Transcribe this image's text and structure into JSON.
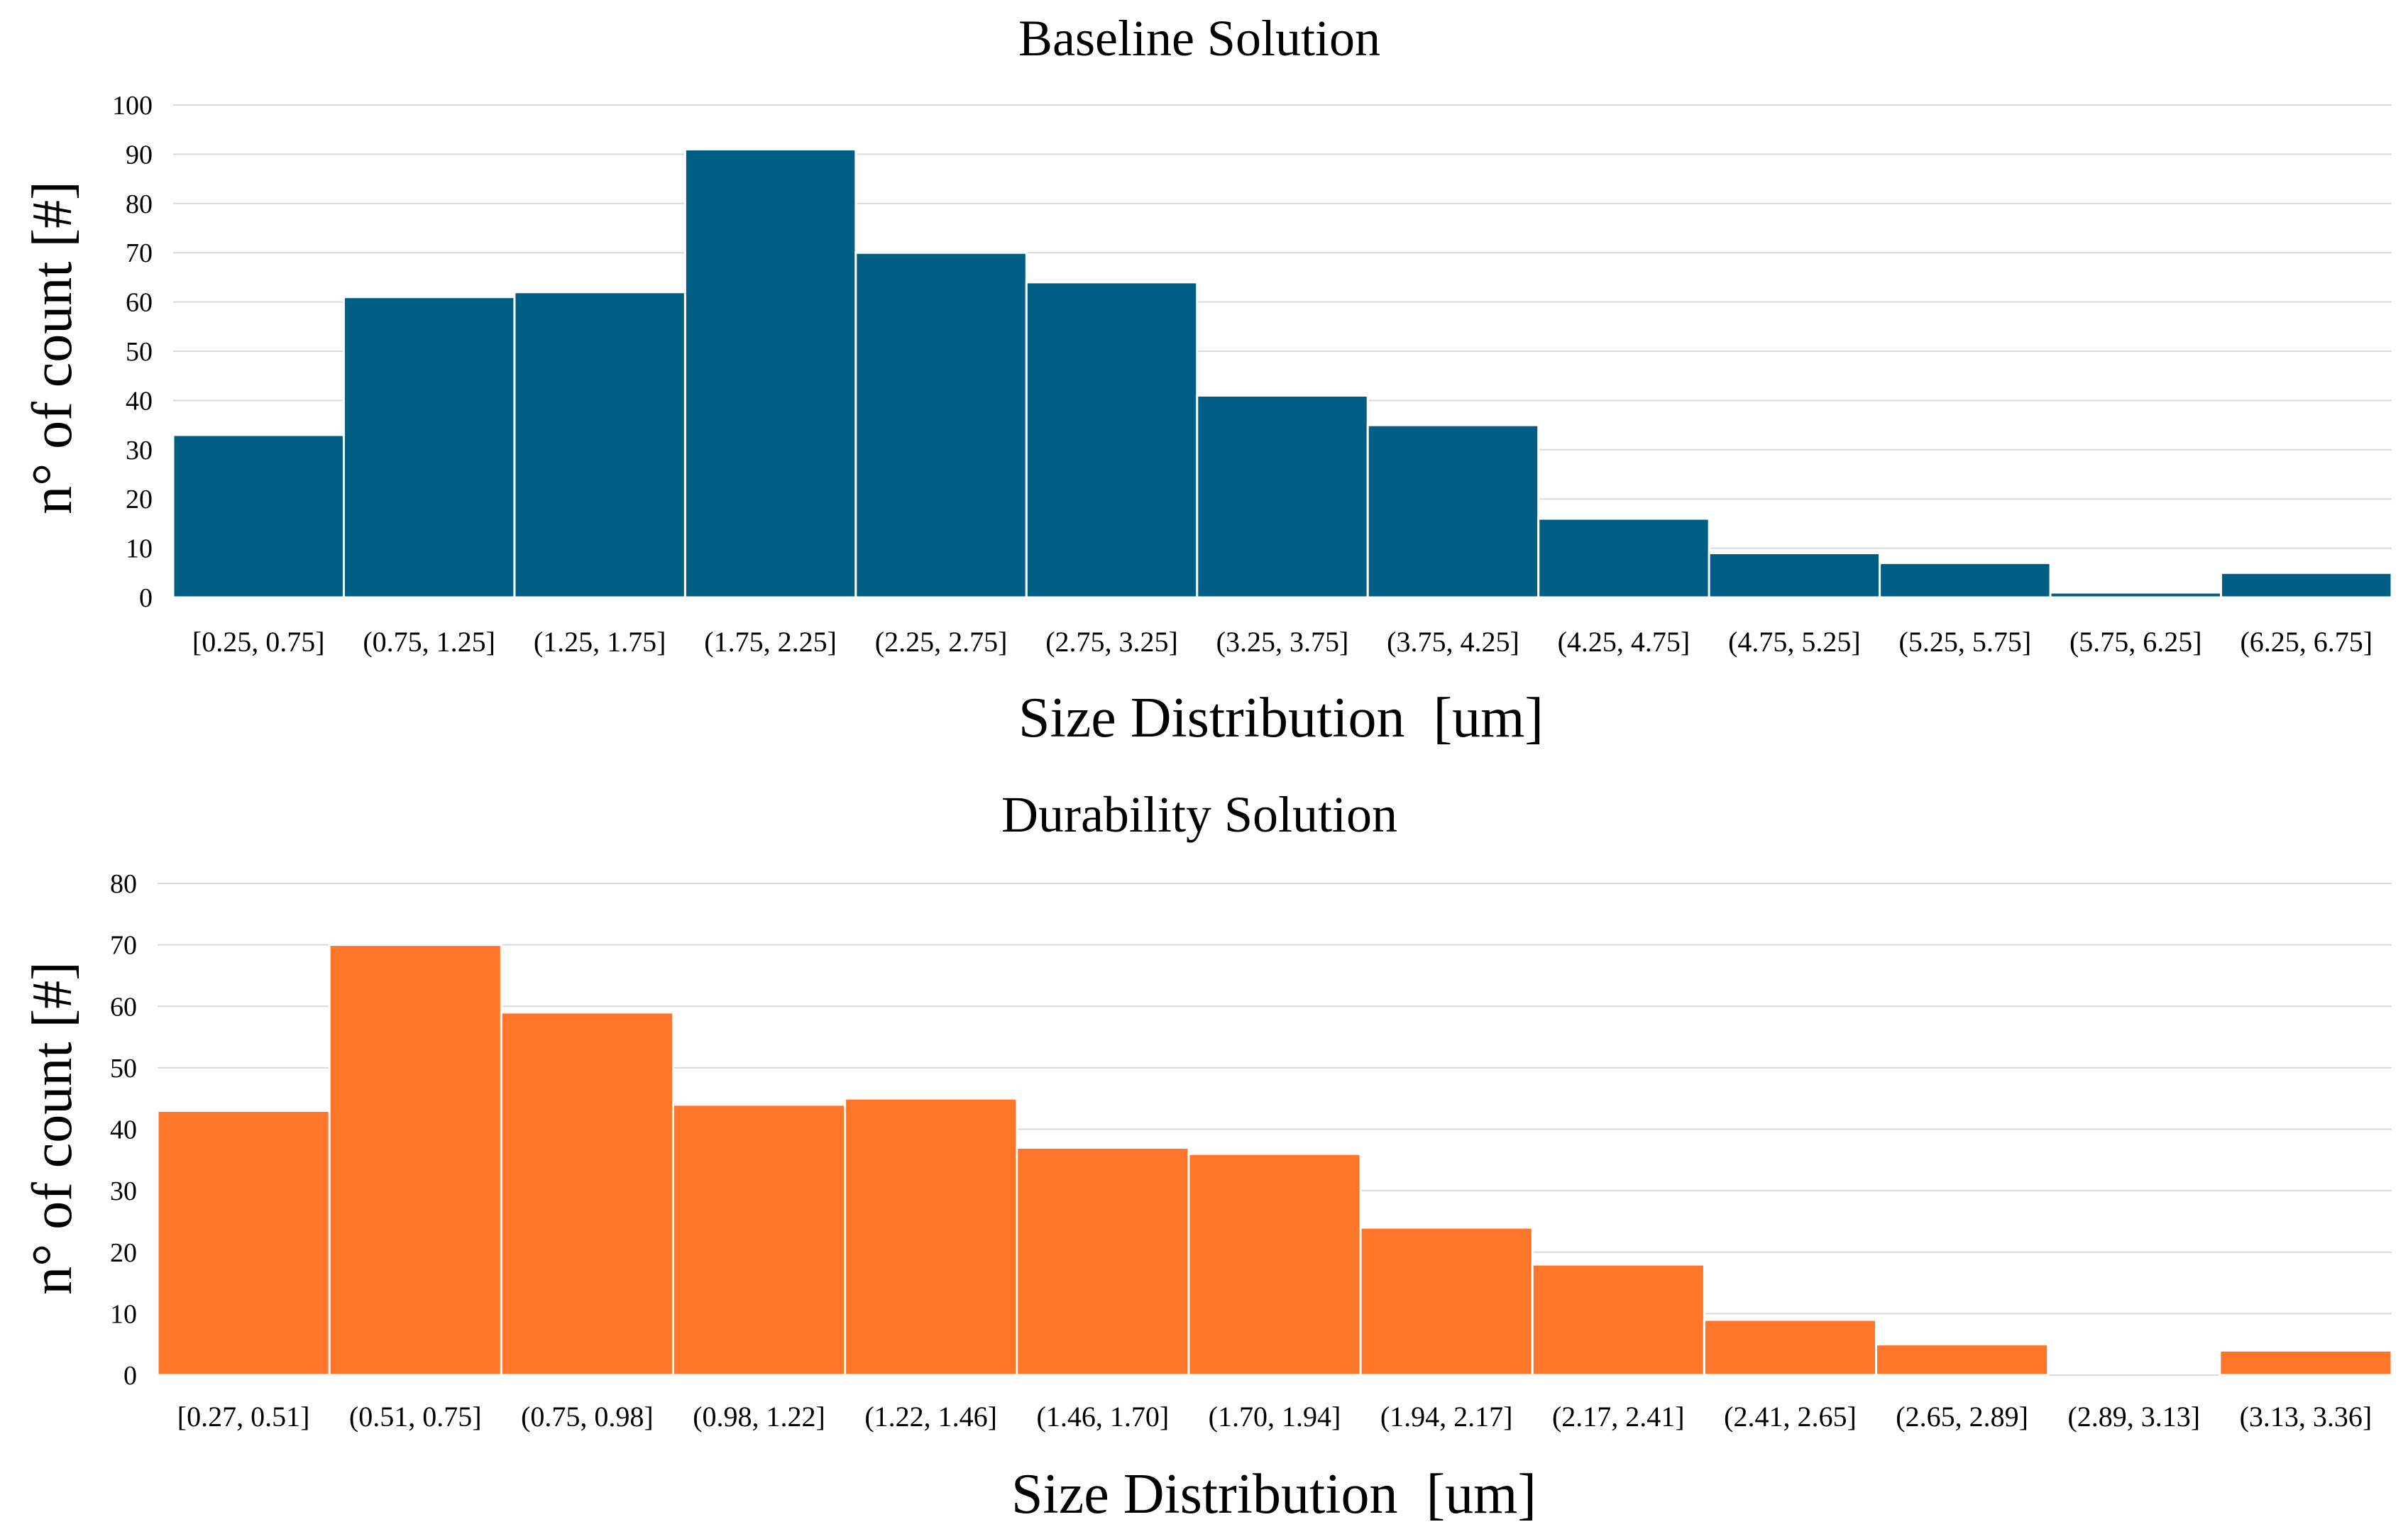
{
  "chart_data": [
    {
      "type": "bar",
      "title": "Baseline Solution",
      "xlabel": "Size Distribution  [um]",
      "ylabel": "n° of count [#]",
      "ylim": [
        0,
        100
      ],
      "yticks": [
        "0",
        "10",
        "20",
        "30",
        "40",
        "50",
        "60",
        "70",
        "80",
        "90",
        "100"
      ],
      "grid": true,
      "color": "#005e84",
      "categories": [
        "[0.25, 0.75]",
        "(0.75, 1.25]",
        "(1.25, 1.75]",
        "(1.75, 2.25]",
        "(2.25, 2.75]",
        "(2.75, 3.25]",
        "(3.25, 3.75]",
        "(3.75, 4.25]",
        "(4.25, 4.75]",
        "(4.75, 5.25]",
        "(5.25, 5.75]",
        "(5.75, 6.25]",
        "(6.25, 6.75]"
      ],
      "values": [
        33,
        61,
        62,
        91,
        70,
        64,
        41,
        35,
        16,
        9,
        7,
        1,
        5
      ]
    },
    {
      "type": "bar",
      "title": "Durability Solution",
      "xlabel": "Size Distribution  [um]",
      "ylabel": "n° of count [#]",
      "ylim": [
        0,
        80
      ],
      "yticks": [
        "0",
        "10",
        "20",
        "30",
        "40",
        "50",
        "60",
        "70",
        "80"
      ],
      "grid": true,
      "color": "#ff7529",
      "categories": [
        "[0.27, 0.51]",
        "(0.51, 0.75]",
        "(0.75, 0.98]",
        "(0.98, 1.22]",
        "(1.22, 1.46]",
        "(1.46, 1.70]",
        "(1.70, 1.94]",
        "(1.94, 2.17]",
        "(2.17, 2.41]",
        "(2.41, 2.65]",
        "(2.65, 2.89]",
        "(2.89, 3.13]",
        "(3.13, 3.36]"
      ],
      "values": [
        43,
        70,
        59,
        44,
        45,
        37,
        36,
        24,
        18,
        9,
        5,
        0,
        4
      ]
    }
  ]
}
